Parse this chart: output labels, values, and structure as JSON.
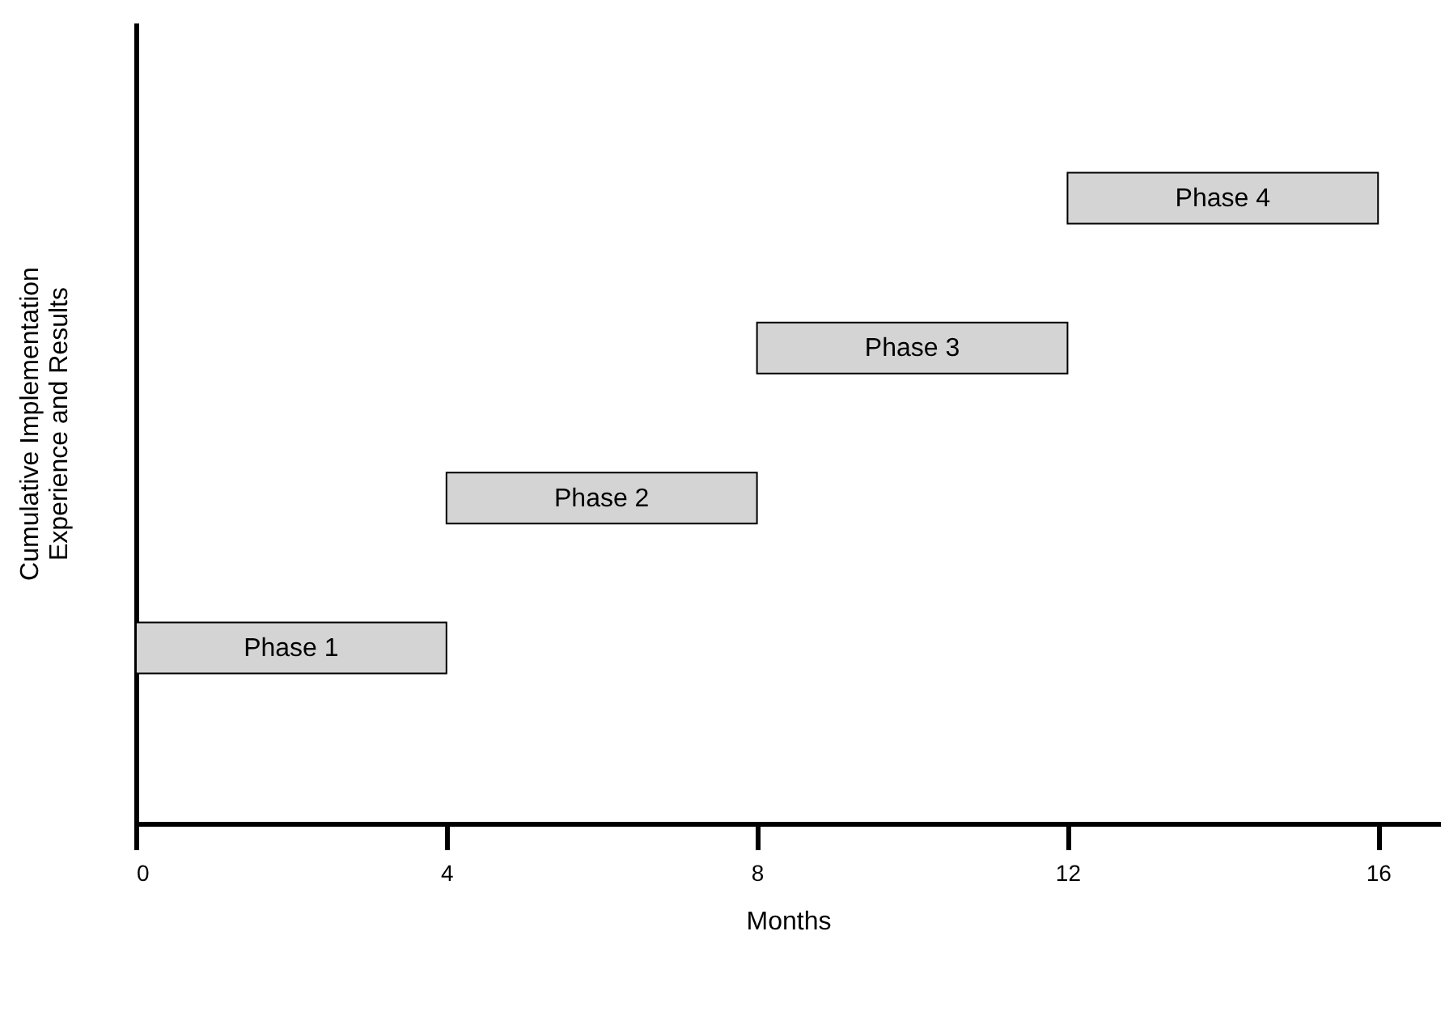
{
  "chart_data": {
    "type": "bar",
    "orientation": "horizontal",
    "xlabel": "Months",
    "ylabel": "Cumulative Implementation\nExperience and Results",
    "categories": [
      "Phase 4",
      "Phase 3",
      "Phase 2",
      "Phase 1"
    ],
    "base": [
      12,
      8,
      4,
      0
    ],
    "values": [
      4,
      4,
      4,
      4
    ],
    "color": "#d4d4d4",
    "xlim": [
      0,
      16.8
    ],
    "xticks": [
      0,
      4,
      8,
      12,
      16
    ],
    "tick_labels": "x"
  }
}
